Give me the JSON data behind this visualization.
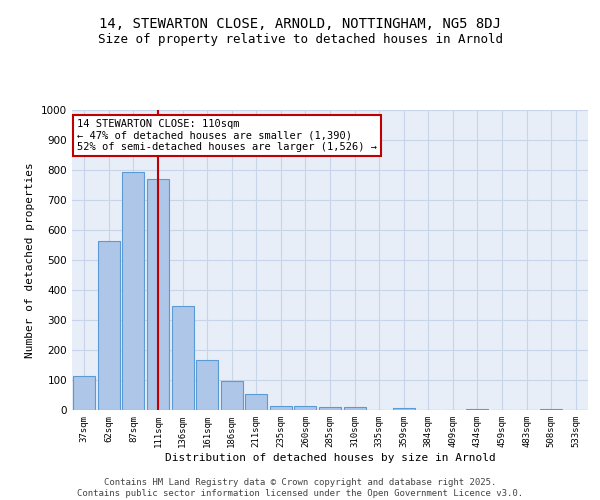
{
  "title": "14, STEWARTON CLOSE, ARNOLD, NOTTINGHAM, NG5 8DJ",
  "subtitle": "Size of property relative to detached houses in Arnold",
  "xlabel": "Distribution of detached houses by size in Arnold",
  "ylabel": "Number of detached properties",
  "categories": [
    "37sqm",
    "62sqm",
    "87sqm",
    "111sqm",
    "136sqm",
    "161sqm",
    "186sqm",
    "211sqm",
    "235sqm",
    "260sqm",
    "285sqm",
    "310sqm",
    "335sqm",
    "359sqm",
    "384sqm",
    "409sqm",
    "434sqm",
    "459sqm",
    "483sqm",
    "508sqm",
    "533sqm"
  ],
  "values": [
    112,
    562,
    793,
    770,
    348,
    168,
    98,
    52,
    15,
    12,
    11,
    10,
    0,
    8,
    0,
    0,
    5,
    0,
    0,
    5,
    0
  ],
  "bar_color": "#aec6e8",
  "bar_edge_color": "#5b9bd5",
  "vline_x_index": 3,
  "vline_color": "#c00000",
  "annotation_line1": "14 STEWARTON CLOSE: 110sqm",
  "annotation_line2": "← 47% of detached houses are smaller (1,390)",
  "annotation_line3": "52% of semi-detached houses are larger (1,526) →",
  "annotation_box_color": "#c00000",
  "annotation_fill": "#ffffff",
  "ylim": [
    0,
    1000
  ],
  "yticks": [
    0,
    100,
    200,
    300,
    400,
    500,
    600,
    700,
    800,
    900,
    1000
  ],
  "grid_color": "#c8d4ea",
  "background_color": "#e8eef8",
  "footer_line1": "Contains HM Land Registry data © Crown copyright and database right 2025.",
  "footer_line2": "Contains public sector information licensed under the Open Government Licence v3.0.",
  "title_fontsize": 10,
  "subtitle_fontsize": 9,
  "xlabel_fontsize": 8,
  "ylabel_fontsize": 8,
  "annotation_fontsize": 7.5,
  "footer_fontsize": 6.5
}
